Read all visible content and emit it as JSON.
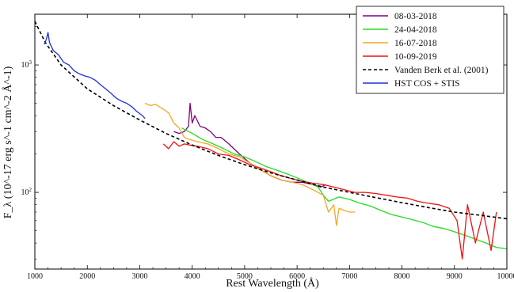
{
  "chart_data": {
    "type": "line",
    "xlabel": "Rest Wavelength (Å)",
    "ylabel": "F_λ (10^-17 erg s^-1 cm^-2 Å^-1)",
    "xlim": [
      1000,
      10000
    ],
    "ylim": [
      25,
      2500
    ],
    "yscale": "log",
    "x_ticks": [
      1000,
      2000,
      3000,
      4000,
      5000,
      6000,
      7000,
      8000,
      9000,
      10000
    ],
    "y_ticks": [
      100,
      1000
    ],
    "grid": false,
    "legend_position": "top-right",
    "series": [
      {
        "name": "08-03-2018",
        "color": "#800080",
        "style": "solid",
        "x": [
          3650,
          3750,
          3850,
          3930,
          3960,
          4000,
          4050,
          4150,
          4250,
          4350,
          4450,
          4550,
          4700,
          4900,
          5100,
          5300,
          5500,
          5700,
          5900,
          6100,
          6300,
          6450,
          6550
        ],
        "y": [
          300,
          290,
          300,
          330,
          500,
          350,
          400,
          330,
          320,
          300,
          270,
          270,
          240,
          200,
          170,
          150,
          135,
          125,
          120,
          120,
          115,
          110,
          115
        ]
      },
      {
        "name": "24-04-2018",
        "color": "#22dd22",
        "style": "solid",
        "x": [
          3800,
          4000,
          4200,
          4400,
          4600,
          4800,
          5000,
          5200,
          5400,
          5600,
          5800,
          6000,
          6200,
          6400,
          6500,
          6600,
          6800,
          7000,
          7200,
          7400,
          7600,
          7800,
          8000,
          8200,
          8400,
          8600,
          8800,
          9000,
          9200,
          9400,
          9600,
          9800,
          10000
        ],
        "y": [
          320,
          290,
          260,
          240,
          220,
          200,
          190,
          175,
          160,
          150,
          140,
          130,
          120,
          110,
          95,
          85,
          92,
          88,
          82,
          78,
          72,
          67,
          64,
          61,
          58,
          54,
          52,
          49,
          46,
          43,
          40,
          37,
          36
        ]
      },
      {
        "name": "16-07-2018",
        "color": "#f5a623",
        "style": "solid",
        "x": [
          3100,
          3200,
          3300,
          3450,
          3550,
          3650,
          3750,
          3850,
          3950,
          4100,
          4300,
          4500,
          4700,
          4900,
          5100,
          5300,
          5500,
          5700,
          5900,
          6100,
          6300,
          6500,
          6600,
          6700,
          6750,
          6800,
          6900,
          7000,
          7100
        ],
        "y": [
          500,
          480,
          490,
          450,
          420,
          350,
          320,
          270,
          260,
          250,
          240,
          220,
          200,
          190,
          170,
          150,
          135,
          125,
          120,
          115,
          105,
          95,
          70,
          80,
          55,
          75,
          72,
          70,
          70
        ]
      },
      {
        "name": "10-09-2019",
        "color": "#ee1111",
        "style": "solid",
        "x": [
          3450,
          3550,
          3650,
          3750,
          3850,
          3950,
          4100,
          4300,
          4500,
          4700,
          4900,
          5100,
          5300,
          5500,
          5700,
          5900,
          6100,
          6300,
          6500,
          6700,
          6900,
          7100,
          7300,
          7500,
          7700,
          7900,
          8100,
          8300,
          8500,
          8700,
          8900,
          9050,
          9150,
          9250,
          9400,
          9550,
          9700,
          9800
        ],
        "y": [
          240,
          220,
          250,
          230,
          240,
          235,
          230,
          220,
          200,
          195,
          180,
          165,
          155,
          145,
          135,
          128,
          122,
          118,
          115,
          110,
          105,
          100,
          100,
          98,
          95,
          92,
          90,
          85,
          82,
          80,
          75,
          60,
          30,
          80,
          40,
          70,
          35,
          70
        ]
      },
      {
        "name": "Vanden Berk et al. (2001)",
        "color": "#000000",
        "style": "dashed",
        "x": [
          1000,
          1200,
          1500,
          2000,
          2500,
          3000,
          3500,
          4000,
          4500,
          5000,
          5500,
          6000,
          6500,
          7000,
          7500,
          8000,
          8500,
          9000,
          9500,
          10000
        ],
        "y": [
          2200,
          1500,
          1000,
          650,
          480,
          370,
          290,
          235,
          195,
          165,
          142,
          125,
          110,
          100,
          91,
          83,
          76,
          70,
          66,
          62
        ]
      },
      {
        "name": "HST COS + STIS",
        "color": "#1f2fdd",
        "style": "solid",
        "x": [
          1180,
          1220,
          1250,
          1280,
          1350,
          1450,
          1550,
          1650,
          1750,
          1850,
          1950,
          2050,
          2150,
          2250,
          2350,
          2450,
          2550,
          2650,
          2750,
          2850,
          2950,
          3050,
          3100
        ],
        "y": [
          1450,
          1600,
          1800,
          1500,
          1300,
          1200,
          1050,
          1000,
          900,
          850,
          820,
          800,
          760,
          700,
          650,
          600,
          550,
          520,
          500,
          470,
          430,
          400,
          380
        ]
      }
    ]
  }
}
